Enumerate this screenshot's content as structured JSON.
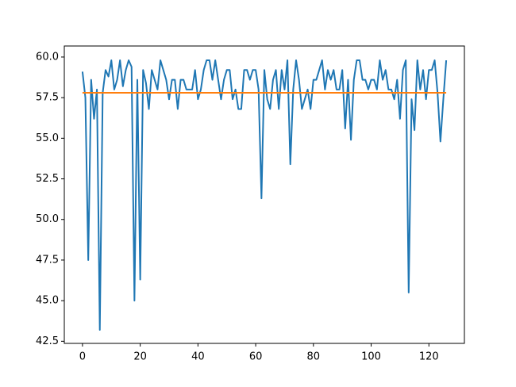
{
  "chart_data": {
    "type": "line",
    "x": [
      0,
      1,
      2,
      3,
      4,
      5,
      6,
      7,
      8,
      9,
      10,
      11,
      12,
      13,
      14,
      15,
      16,
      17,
      18,
      19,
      20,
      21,
      22,
      23,
      24,
      25,
      26,
      27,
      28,
      29,
      30,
      31,
      32,
      33,
      34,
      35,
      36,
      37,
      38,
      39,
      40,
      41,
      42,
      43,
      44,
      45,
      46,
      47,
      48,
      49,
      50,
      51,
      52,
      53,
      54,
      55,
      56,
      57,
      58,
      59,
      60,
      61,
      62,
      63,
      64,
      65,
      66,
      67,
      68,
      69,
      70,
      71,
      72,
      73,
      74,
      75,
      76,
      77,
      78,
      79,
      80,
      81,
      82,
      83,
      84,
      85,
      86,
      87,
      88,
      89,
      90,
      91,
      92,
      93,
      94,
      95,
      96,
      97,
      98,
      99,
      100,
      101,
      102,
      103,
      104,
      105,
      106,
      107,
      108,
      109,
      110,
      111,
      112,
      113,
      114,
      115,
      116,
      117,
      118,
      119,
      120,
      121,
      122,
      123,
      124,
      125,
      126
    ],
    "series": [
      {
        "color": "#1f77b4",
        "values": [
          59.1,
          57.5,
          47.5,
          58.6,
          56.2,
          58.0,
          43.2,
          57.8,
          59.2,
          58.8,
          59.8,
          58.0,
          58.6,
          59.8,
          58.2,
          59.2,
          59.8,
          59.4,
          45.0,
          58.6,
          46.3,
          59.2,
          58.4,
          56.8,
          59.2,
          58.6,
          58.0,
          59.8,
          59.2,
          58.6,
          57.4,
          58.6,
          58.6,
          56.8,
          58.6,
          58.6,
          58.0,
          58.0,
          58.0,
          59.2,
          57.4,
          58.0,
          59.2,
          59.8,
          59.8,
          58.6,
          59.8,
          58.6,
          57.4,
          58.6,
          59.2,
          59.2,
          57.4,
          58.0,
          56.8,
          56.8,
          59.2,
          59.2,
          58.6,
          59.2,
          59.2,
          58.0,
          51.3,
          59.2,
          57.4,
          56.8,
          58.6,
          59.2,
          56.8,
          59.2,
          58.0,
          59.8,
          53.4,
          58.0,
          59.8,
          58.6,
          56.8,
          57.4,
          58.0,
          56.8,
          58.6,
          58.6,
          59.2,
          59.8,
          58.0,
          59.2,
          58.6,
          59.2,
          58.0,
          58.0,
          59.2,
          55.6,
          58.6,
          54.9,
          58.6,
          59.8,
          59.8,
          58.6,
          58.6,
          58.0,
          58.6,
          58.6,
          58.0,
          59.8,
          58.6,
          59.2,
          58.0,
          58.0,
          57.4,
          58.6,
          56.2,
          59.2,
          59.8,
          45.5,
          57.4,
          55.5,
          59.8,
          58.0,
          59.2,
          57.4,
          59.2,
          59.2,
          59.8,
          57.8,
          54.8,
          57.4,
          59.8
        ]
      },
      {
        "color": "#ff7f0e",
        "values": [
          57.8,
          57.8,
          57.8,
          57.8,
          57.8,
          57.8,
          57.8,
          57.8,
          57.8,
          57.8,
          57.8,
          57.8,
          57.8,
          57.8,
          57.8,
          57.8,
          57.8,
          57.8,
          57.8,
          57.8,
          57.8,
          57.8,
          57.8,
          57.8,
          57.8,
          57.8,
          57.8,
          57.8,
          57.8,
          57.8,
          57.8,
          57.8,
          57.8,
          57.8,
          57.8,
          57.8,
          57.8,
          57.8,
          57.8,
          57.8,
          57.8,
          57.8,
          57.8,
          57.8,
          57.8,
          57.8,
          57.8,
          57.8,
          57.8,
          57.8,
          57.8,
          57.8,
          57.8,
          57.8,
          57.8,
          57.8,
          57.8,
          57.8,
          57.8,
          57.8,
          57.8,
          57.8,
          57.8,
          57.8,
          57.8,
          57.8,
          57.8,
          57.8,
          57.8,
          57.8,
          57.8,
          57.8,
          57.8,
          57.8,
          57.8,
          57.8,
          57.8,
          57.8,
          57.8,
          57.8,
          57.8,
          57.8,
          57.8,
          57.8,
          57.8,
          57.8,
          57.8,
          57.8,
          57.8,
          57.8,
          57.8,
          57.8,
          57.8,
          57.8,
          57.8,
          57.8,
          57.8,
          57.8,
          57.8,
          57.8,
          57.8,
          57.8,
          57.8,
          57.8,
          57.8,
          57.8,
          57.8,
          57.8,
          57.8,
          57.8,
          57.8,
          57.8,
          57.8,
          57.8,
          57.8,
          57.8,
          57.8,
          57.8,
          57.8,
          57.8,
          57.8,
          57.8,
          57.8,
          57.8,
          57.8,
          57.8,
          57.8
        ]
      }
    ],
    "xlim": [
      -6.3,
      132.3
    ],
    "xticks": [
      0,
      20,
      40,
      60,
      80,
      100,
      120
    ],
    "ylim": [
      42.37,
      60.68
    ],
    "yticks": [
      {
        "value": 42.5,
        "label": "42.5"
      },
      {
        "value": 45,
        "label": "45.0"
      },
      {
        "value": 47.5,
        "label": "47.5"
      },
      {
        "value": 50,
        "label": "50.0"
      },
      {
        "value": 52.5,
        "label": "52.5"
      },
      {
        "value": 55,
        "label": "55.0"
      },
      {
        "value": 57.5,
        "label": "57.5"
      },
      {
        "value": 60,
        "label": "60.0"
      }
    ]
  }
}
